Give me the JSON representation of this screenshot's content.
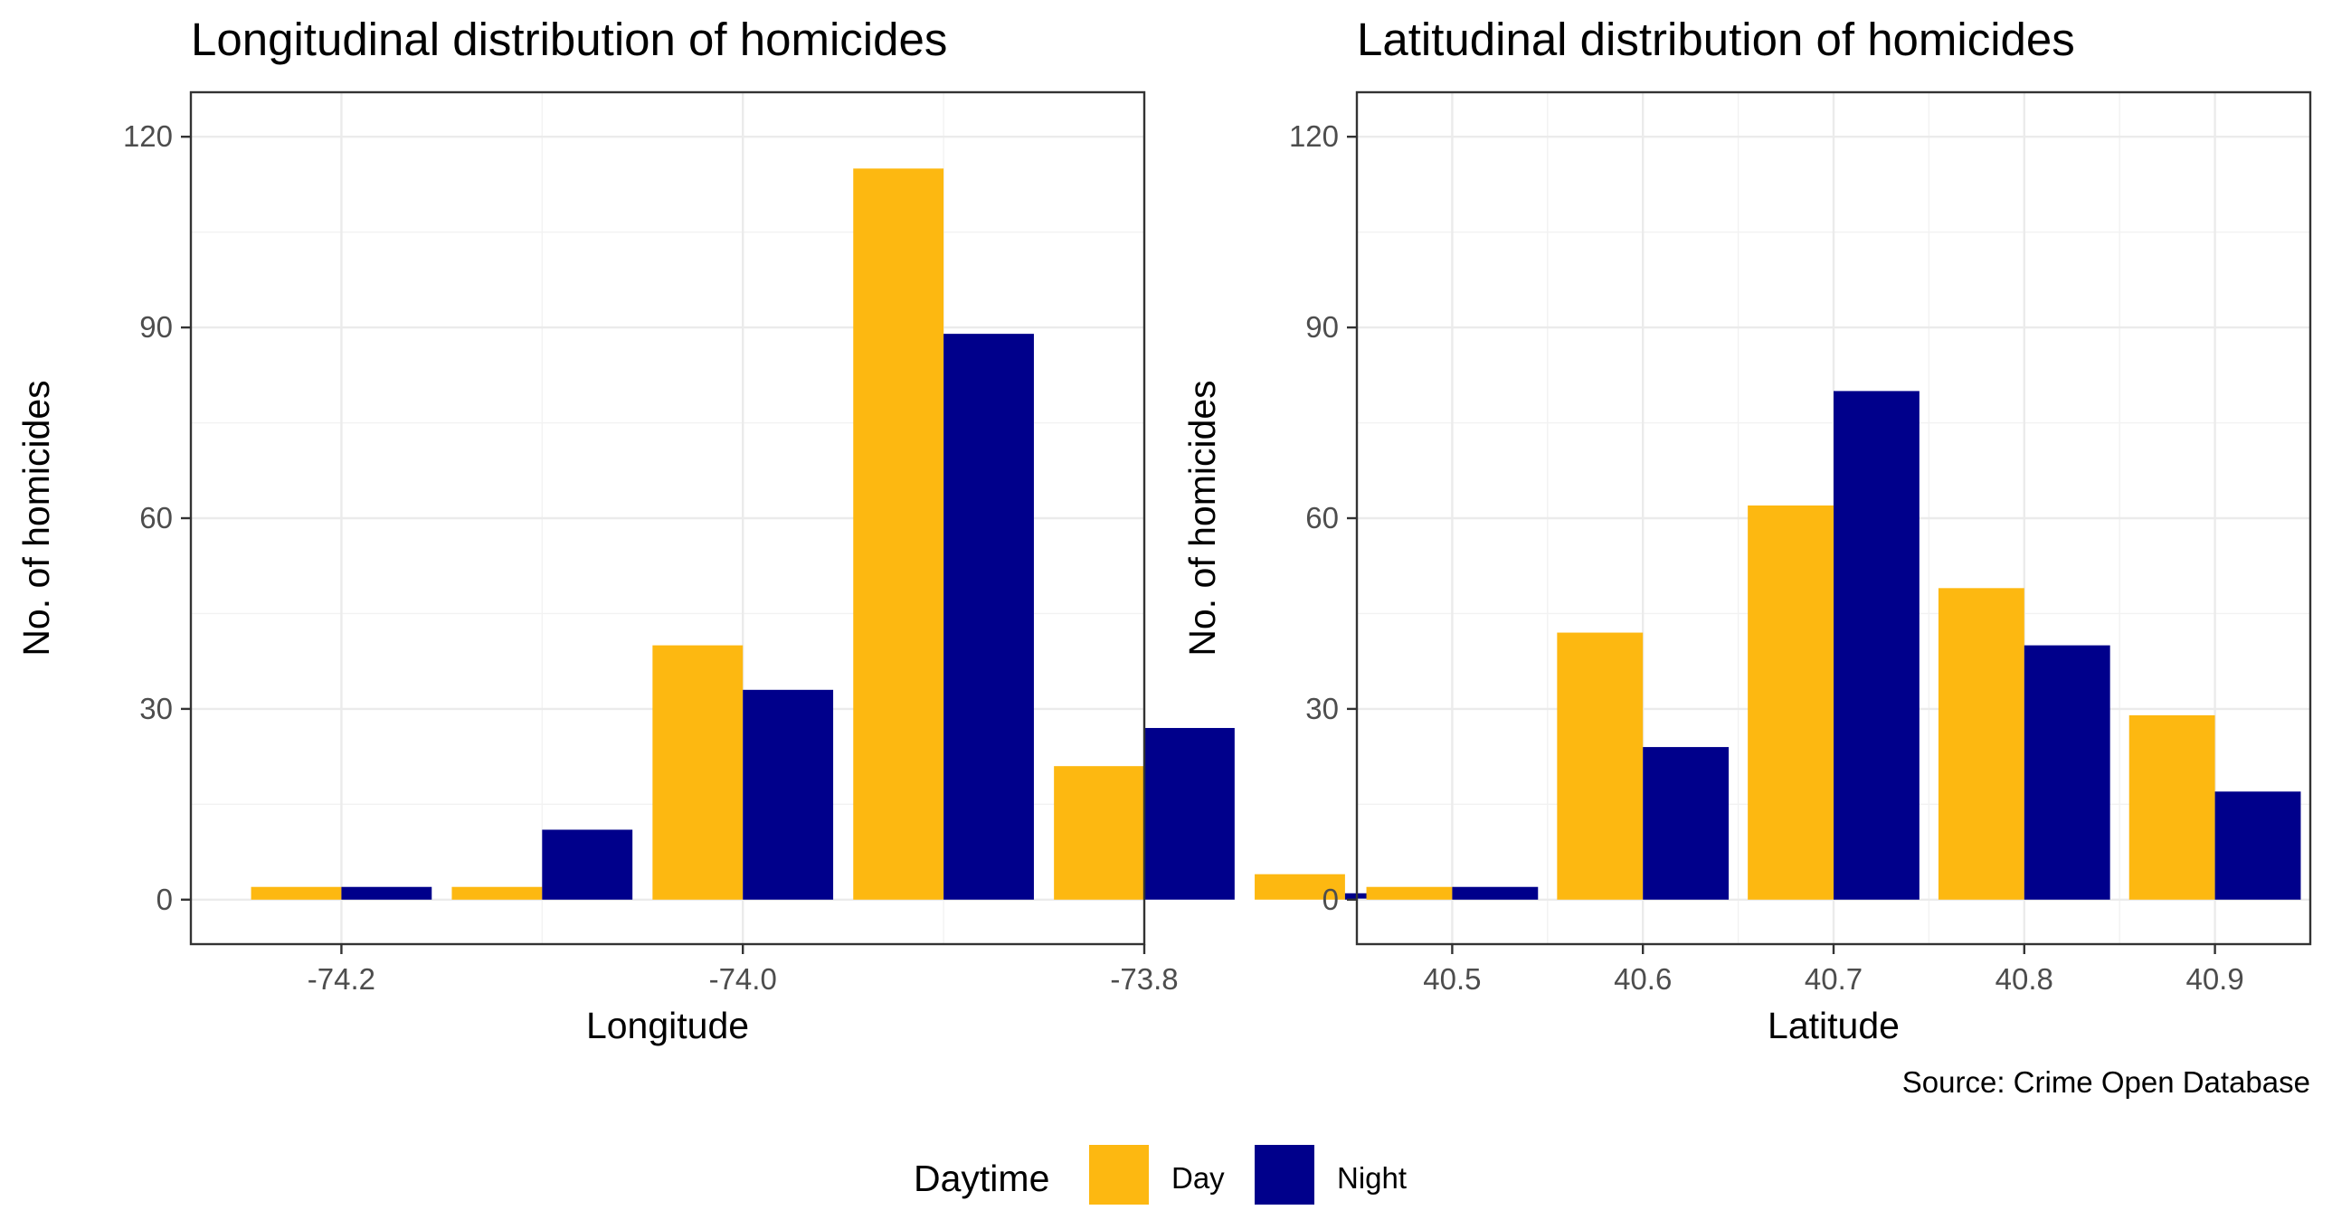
{
  "caption": "Source: Crime Open Database",
  "legend": {
    "title": "Daytime",
    "items": [
      {
        "label": "Day",
        "color": "#FDB811"
      },
      {
        "label": "Night",
        "color": "#00008B"
      }
    ]
  },
  "chart_data": [
    {
      "type": "bar",
      "title": "Longitudinal distribution of homicides",
      "xlabel": "Longitude",
      "ylabel": "No. of homicides",
      "xlim": [
        -74.275,
        -73.8
      ],
      "ylim": [
        -7,
        127
      ],
      "xticks": [
        -74.2,
        -74.0,
        -73.8
      ],
      "xtick_labels": [
        "-74.2",
        "-74.0",
        "-73.8"
      ],
      "yticks": [
        0,
        30,
        60,
        90,
        120
      ],
      "ytick_labels": [
        "0",
        "30",
        "60",
        "90",
        "120"
      ],
      "bin_width": 0.1,
      "x": [
        -74.2,
        -74.1,
        -74.0,
        -73.9,
        -73.8,
        -73.7
      ],
      "grid": true,
      "series": [
        {
          "name": "Day",
          "color": "#FDB811",
          "values": [
            2,
            2,
            40,
            115,
            21,
            4
          ]
        },
        {
          "name": "Night",
          "color": "#00008B",
          "values": [
            2,
            11,
            33,
            89,
            27,
            1
          ]
        }
      ]
    },
    {
      "type": "bar",
      "title": "Latitudinal distribution of homicides",
      "xlabel": "Latitude",
      "ylabel": "No. of homicides",
      "xlim": [
        40.45,
        40.95
      ],
      "ylim": [
        -7,
        127
      ],
      "xticks": [
        40.5,
        40.6,
        40.7,
        40.8,
        40.9
      ],
      "xtick_labels": [
        "40.5",
        "40.6",
        "40.7",
        "40.8",
        "40.9"
      ],
      "yticks": [
        0,
        30,
        60,
        90,
        120
      ],
      "ytick_labels": [
        "0",
        "30",
        "60",
        "90",
        "120"
      ],
      "bin_width": 0.1,
      "x": [
        40.5,
        40.6,
        40.7,
        40.8,
        40.9
      ],
      "grid": true,
      "series": [
        {
          "name": "Day",
          "color": "#FDB811",
          "values": [
            2,
            42,
            62,
            49,
            29
          ]
        },
        {
          "name": "Night",
          "color": "#00008B",
          "values": [
            2,
            24,
            80,
            40,
            17
          ]
        }
      ]
    }
  ]
}
